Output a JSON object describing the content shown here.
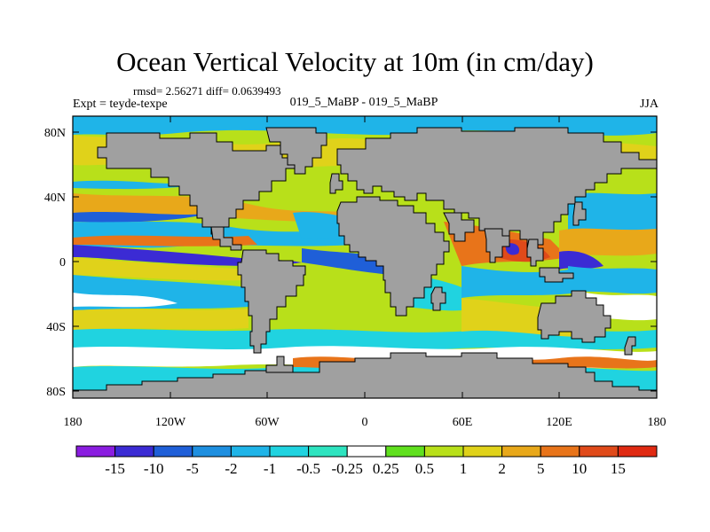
{
  "figure": {
    "title": "Ocean Vertical Velocity at 10m (in cm/day)",
    "stats": "rmsd= 2.56271 diff= 0.0639493",
    "experiment": "Expt = teyde-texpe",
    "case": "019_5_MaBP - 019_5_MaBP",
    "season": "JJA"
  },
  "axes": {
    "lon_ticks": [
      "180",
      "120W",
      "60W",
      "0",
      "60E",
      "120E",
      "180"
    ],
    "lat_ticks": [
      "80N",
      "40N",
      "0",
      "40S",
      "80S"
    ]
  },
  "colorbar": {
    "labels": [
      "-15",
      "-10",
      "-5",
      "-2",
      "-1",
      "-0.5",
      "-0.25",
      "0.25",
      "0.5",
      "1",
      "2",
      "5",
      "10",
      "15"
    ],
    "colors": [
      "#8a1de0",
      "#3b2bd4",
      "#1f5fd8",
      "#1e8fe0",
      "#1fb4e8",
      "#20d3e0",
      "#2ee4c0",
      "#ffffff",
      "#60e01e",
      "#b8e01a",
      "#e0d21a",
      "#e8a81a",
      "#e8741a",
      "#e04a1a",
      "#e02a12"
    ]
  },
  "map": {
    "land_color": "#a0a0a0",
    "palette": {
      "purple": "#8a1de0",
      "dblue": "#3b2bd4",
      "blue": "#1f5fd8",
      "sky": "#1e8fe0",
      "cyan": "#1fb4e8",
      "aqua": "#20d3e0",
      "teal": "#2ee4c0",
      "white": "#ffffff",
      "green": "#60e01e",
      "lime": "#b8e01a",
      "yellow": "#e0d21a",
      "gold": "#e8a81a",
      "orange": "#e8741a",
      "red": "#e04a1a"
    }
  }
}
